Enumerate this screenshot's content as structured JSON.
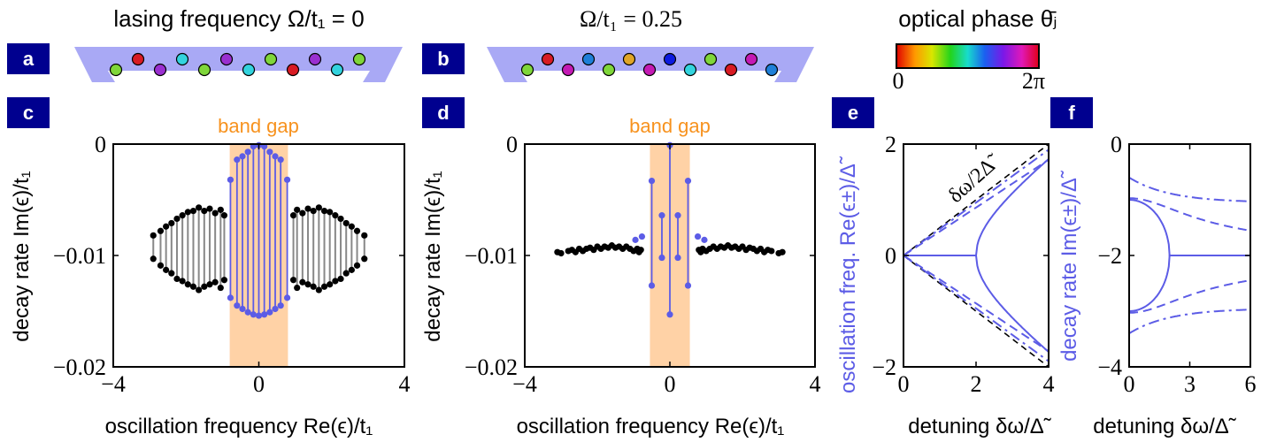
{
  "panel_letters": [
    "a",
    "b",
    "c",
    "d",
    "e",
    "f"
  ],
  "top": {
    "title_a": "lasing frequency  Ω/t₁ = 0",
    "title_b": "Ω/t₁ = 0.25",
    "colorbar_title": "optical phase θ̄ⱼ",
    "colorbar_min": "0",
    "colorbar_max": "2π",
    "row_a_colors": [
      "#7fd63a",
      "#d81b23",
      "#9a2fd0",
      "#33d3de",
      "#7fd63a",
      "#9a2fd0",
      "#33d3de",
      "#7fd63a",
      "#d81b23",
      "#9a2fd0",
      "#33d3de",
      "#7fd63a"
    ],
    "row_b_colors": [
      "#7fd63a",
      "#d81b23",
      "#c41ab4",
      "#1e7fd8",
      "#7fd63a",
      "#e0a526",
      "#c41ab4",
      "#0c1ae0",
      "#33d3de",
      "#7fd63a",
      "#d81b23",
      "#c41ab4",
      "#1e7fd8"
    ]
  },
  "chart_data": [
    {
      "id": "c",
      "type": "scatter",
      "band_gap_label": "band gap",
      "xlabel": "oscillation frequency  Re(ϵ)/t₁",
      "ylabel": "decay rate  Im(ϵ)/t₁",
      "xlim": [
        -4,
        4
      ],
      "ylim": [
        -0.02,
        0
      ],
      "xticks": [
        "−4",
        "0",
        "4"
      ],
      "yticks": [
        "0",
        "−0.01",
        "−0.02"
      ],
      "band_gap": [
        -0.8,
        0.8
      ],
      "gap_pairs": [
        [
          -0.78,
          -0.0032,
          -0.0138
        ],
        [
          -0.6,
          -0.0014,
          -0.0145
        ],
        [
          -0.45,
          -0.0011,
          -0.0148
        ],
        [
          -0.3,
          -0.0007,
          -0.0151
        ],
        [
          -0.15,
          -0.0002,
          -0.0153
        ],
        [
          0.0,
          -0.0001,
          -0.0154
        ],
        [
          0.15,
          -0.0002,
          -0.0153
        ],
        [
          0.3,
          -0.0007,
          -0.0151
        ],
        [
          0.45,
          -0.0011,
          -0.0148
        ],
        [
          0.6,
          -0.0014,
          -0.0145
        ],
        [
          0.78,
          -0.0032,
          -0.0138
        ]
      ],
      "black_pairs": [
        [
          -2.9,
          -0.0082,
          -0.0103
        ],
        [
          -2.7,
          -0.0078,
          -0.0109
        ],
        [
          -2.55,
          -0.0074,
          -0.0113
        ],
        [
          -2.4,
          -0.0071,
          -0.0116
        ],
        [
          -2.25,
          -0.0067,
          -0.0121
        ],
        [
          -2.1,
          -0.0064,
          -0.0123
        ],
        [
          -1.95,
          -0.0061,
          -0.0126
        ],
        [
          -1.8,
          -0.006,
          -0.0128
        ],
        [
          -1.65,
          -0.0057,
          -0.0131
        ],
        [
          -1.5,
          -0.006,
          -0.0128
        ],
        [
          -1.35,
          -0.0058,
          -0.0126
        ],
        [
          -1.2,
          -0.0062,
          -0.0124
        ],
        [
          -1.05,
          -0.0059,
          -0.0129
        ],
        [
          -0.95,
          -0.0064,
          -0.0122
        ],
        [
          0.95,
          -0.0064,
          -0.0122
        ],
        [
          1.05,
          -0.0059,
          -0.0129
        ],
        [
          1.2,
          -0.0062,
          -0.0124
        ],
        [
          1.35,
          -0.0058,
          -0.0126
        ],
        [
          1.5,
          -0.006,
          -0.0128
        ],
        [
          1.65,
          -0.0057,
          -0.0131
        ],
        [
          1.8,
          -0.006,
          -0.0128
        ],
        [
          1.95,
          -0.0061,
          -0.0126
        ],
        [
          2.1,
          -0.0064,
          -0.0123
        ],
        [
          2.25,
          -0.0067,
          -0.0121
        ],
        [
          2.4,
          -0.0071,
          -0.0116
        ],
        [
          2.55,
          -0.0074,
          -0.0113
        ],
        [
          2.7,
          -0.0078,
          -0.0109
        ],
        [
          2.9,
          -0.0082,
          -0.0103
        ]
      ]
    },
    {
      "id": "d",
      "type": "scatter",
      "band_gap_label": "band gap",
      "xlabel": "oscillation frequency  Re(ϵ)/t₁",
      "ylabel": "decay rate  Im(ϵ)/t₁",
      "xlim": [
        -4,
        4
      ],
      "ylim": [
        -0.02,
        0
      ],
      "xticks": [
        "−4",
        "0",
        "4"
      ],
      "yticks": [
        "0",
        "−0.01",
        "−0.02"
      ],
      "band_gap": [
        -0.55,
        0.55
      ],
      "gap_pairs": [
        [
          -0.5,
          -0.0033,
          -0.0127
        ],
        [
          -0.22,
          -0.0064,
          -0.0102
        ],
        [
          0.0,
          -0.0001,
          -0.0153
        ],
        [
          0.22,
          -0.0064,
          -0.0102
        ],
        [
          0.5,
          -0.0033,
          -0.0127
        ]
      ],
      "gap_points": [
        [
          -0.77,
          -0.0083
        ],
        [
          -0.95,
          -0.0086
        ],
        [
          0.77,
          -0.0083
        ],
        [
          0.95,
          -0.0086
        ]
      ],
      "black_points": [
        [
          -3.1,
          -0.0097
        ],
        [
          -3.0,
          -0.0098
        ],
        [
          -2.8,
          -0.0096
        ],
        [
          -2.7,
          -0.0095
        ],
        [
          -2.6,
          -0.0097
        ],
        [
          -2.5,
          -0.0094
        ],
        [
          -2.4,
          -0.0096
        ],
        [
          -2.3,
          -0.0094
        ],
        [
          -2.2,
          -0.0093
        ],
        [
          -2.1,
          -0.0095
        ],
        [
          -2.0,
          -0.0092
        ],
        [
          -1.9,
          -0.0094
        ],
        [
          -1.8,
          -0.0092
        ],
        [
          -1.7,
          -0.0093
        ],
        [
          -1.6,
          -0.0091
        ],
        [
          -1.5,
          -0.0093
        ],
        [
          -1.4,
          -0.0092
        ],
        [
          -1.3,
          -0.0094
        ],
        [
          -1.2,
          -0.0092
        ],
        [
          -1.1,
          -0.0094
        ],
        [
          -1.0,
          -0.0096
        ],
        [
          -0.9,
          -0.0094
        ],
        [
          -0.85,
          -0.0097
        ],
        [
          -0.8,
          -0.0095
        ],
        [
          0.8,
          -0.0095
        ],
        [
          0.85,
          -0.0097
        ],
        [
          0.9,
          -0.0094
        ],
        [
          1.0,
          -0.0096
        ],
        [
          1.1,
          -0.0094
        ],
        [
          1.2,
          -0.0092
        ],
        [
          1.3,
          -0.0094
        ],
        [
          1.4,
          -0.0092
        ],
        [
          1.5,
          -0.0093
        ],
        [
          1.6,
          -0.0091
        ],
        [
          1.7,
          -0.0093
        ],
        [
          1.8,
          -0.0092
        ],
        [
          1.9,
          -0.0094
        ],
        [
          2.0,
          -0.0092
        ],
        [
          2.1,
          -0.0095
        ],
        [
          2.2,
          -0.0093
        ],
        [
          2.3,
          -0.0094
        ],
        [
          2.4,
          -0.0096
        ],
        [
          2.5,
          -0.0094
        ],
        [
          2.6,
          -0.0097
        ],
        [
          2.7,
          -0.0095
        ],
        [
          2.8,
          -0.0096
        ],
        [
          3.0,
          -0.0098
        ],
        [
          3.1,
          -0.0097
        ]
      ]
    },
    {
      "id": "e",
      "type": "line",
      "xlabel": "detuning  δω/Δ̃",
      "ylabel": "oscillation freq.  Re(ϵ±)/Δ̃",
      "annotation": "δω/2Δ̃",
      "xlim": [
        0,
        4
      ],
      "ylim": [
        -2,
        2
      ],
      "xticks": [
        "0",
        "2",
        "4"
      ],
      "yticks": [
        "2",
        "0",
        "−2"
      ]
    },
    {
      "id": "f",
      "type": "line",
      "xlabel": "detuning  δω/Δ̃",
      "ylabel": "decay rate  Im(ϵ±)/Δ̃",
      "xlim": [
        0,
        6
      ],
      "ylim": [
        -4,
        0
      ],
      "xticks": [
        "0",
        "3",
        "6"
      ],
      "yticks": [
        "0",
        "−2",
        "−4"
      ]
    }
  ],
  "colors": {
    "blue": "#5c5ce6",
    "black": "#000000",
    "gap": "#ffd2a6",
    "orange": "#f7921e",
    "badge": "#00008f",
    "lattice": "#a9a9f5",
    "gray": "#888888"
  }
}
